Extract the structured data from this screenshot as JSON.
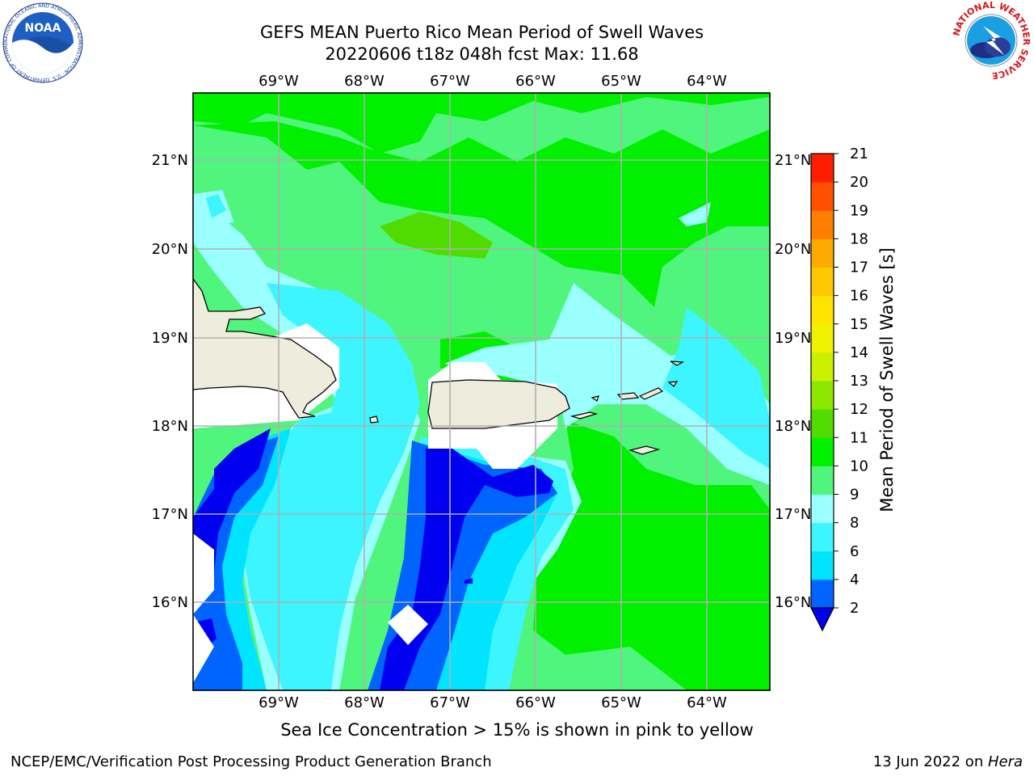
{
  "title_line1": "GEFS MEAN Puerto Rico Mean Period of Swell Waves",
  "title_line2": "20220606 t18z 048h fcst   Max: 11.68",
  "subtitle": "Sea Ice Concentration > 15% is shown in pink to yellow",
  "footer_left": "NCEP/EMC/Verification Post Processing Product Generation Branch",
  "footer_date": "13 Jun 2022 on ",
  "footer_host": "Hera",
  "logos": {
    "noaa_text": "NOAA",
    "noaa_ring": "NATIONAL OCEANIC AND ATMOSPHERIC ADMINISTRATION · U.S. DEPARTMENT OF COMMERCE",
    "nws_ring": "NATIONAL WEATHER SERVICE"
  },
  "map": {
    "lon_labels": [
      "69°W",
      "68°W",
      "67°W",
      "66°W",
      "65°W",
      "64°W"
    ],
    "lat_labels": [
      "21°N",
      "20°N",
      "19°N",
      "18°N",
      "17°N",
      "16°N"
    ]
  },
  "colorbar": {
    "label": "Mean Period of Swell Waves [s]",
    "ticks": [
      "2",
      "4",
      "6",
      "8",
      "9",
      "10",
      "11",
      "12",
      "13",
      "14",
      "15",
      "16",
      "17",
      "18",
      "19",
      "20",
      "21"
    ],
    "colors": [
      "#0000f0",
      "#0064ff",
      "#00e4ff",
      "#3cf5ff",
      "#9affff",
      "#50f57d",
      "#00f000",
      "#50dc00",
      "#8ce600",
      "#c8f000",
      "#f0f000",
      "#ffe400",
      "#ffc800",
      "#ffaa00",
      "#ff7d00",
      "#ff5000",
      "#ff1e00",
      "#ff0000"
    ],
    "under_color": "#0000f0"
  }
}
